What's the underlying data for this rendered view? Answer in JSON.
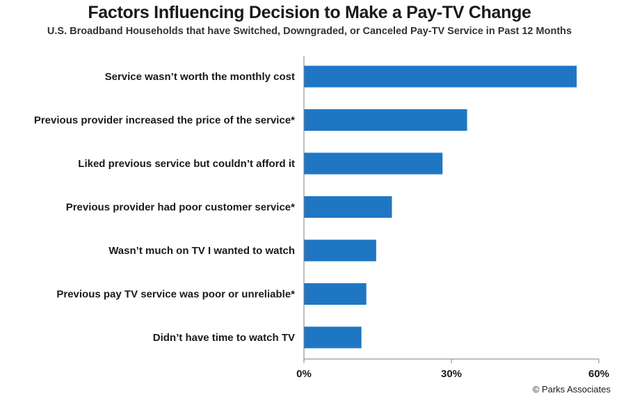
{
  "title": "Factors Influencing Decision to Make a Pay-TV Change",
  "subtitle": "U.S. Broadband Households that have Switched, Downgraded, or Canceled Pay-TV Service in Past 12 Months",
  "copyright": "© Parks Associates",
  "colors": {
    "bar": "#1f77c4",
    "axis": "#7f7f7f"
  },
  "chart_data": {
    "type": "bar",
    "orientation": "horizontal",
    "categories": [
      "Service wasn’t worth the monthly cost",
      "Previous provider increased the price of the service*",
      "Liked previous service but couldn’t afford it",
      "Previous provider had poor customer service*",
      "Wasn’t much on TV I wanted to watch",
      "Previous pay TV service was poor or unreliable*",
      "Didn’t have time to watch TV"
    ],
    "values": [
      55.5,
      33.2,
      28.2,
      17.9,
      14.7,
      12.7,
      11.7
    ],
    "xlim": [
      0,
      60
    ],
    "xticks": [
      0,
      30,
      60
    ],
    "xtick_labels": [
      "0%",
      "30%",
      "60%"
    ],
    "grid": false,
    "legend": "none"
  }
}
